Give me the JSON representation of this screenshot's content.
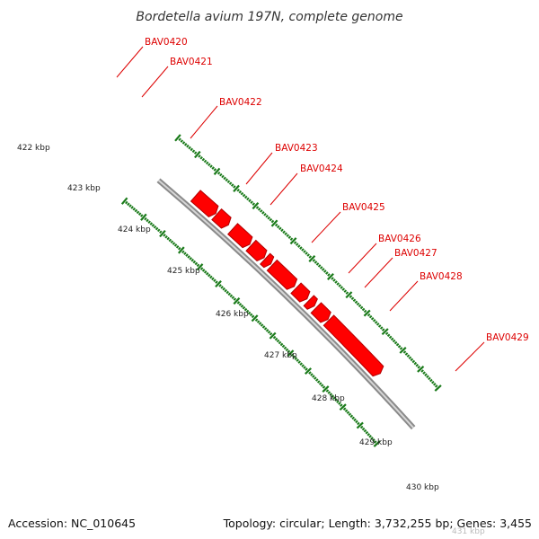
{
  "title": "Bordetella avium 197N, complete genome",
  "footer": {
    "accession": "Accession: NC_010645",
    "summary": "Topology: circular; Length: 3,732,255 bp; Genes: 3,455"
  },
  "colors": {
    "gene_fill": "#ff0000",
    "gene_edge": "#b00000",
    "backbone": "#8a8a8a",
    "tick": "#1a7a1a",
    "label": "#dd0000"
  },
  "genes": [
    {
      "name": "BAV0420",
      "start": 420.0,
      "end": 421.05
    },
    {
      "name": "BAV0421",
      "start": 421.1,
      "end": 421.72
    },
    {
      "name": "BAV0422",
      "start": 421.95,
      "end": 422.85
    },
    {
      "name": "BAV0423",
      "start": 422.92,
      "end": 423.62
    },
    {
      "name": "BAV0424",
      "start": 423.68,
      "end": 423.98
    },
    {
      "name": "BAV0425",
      "start": 424.05,
      "end": 425.25
    },
    {
      "name": "BAV0426",
      "start": 425.35,
      "end": 425.95
    },
    {
      "name": "BAV0427",
      "start": 426.05,
      "end": 426.35
    },
    {
      "name": "BAV0428",
      "start": 426.45,
      "end": 427.1
    },
    {
      "name": "BAV0429",
      "start": 427.15,
      "end": 430.05
    }
  ],
  "gene_labels": [
    {
      "text": "BAV0420"
    },
    {
      "text": "BAV0421"
    },
    {
      "text": "BAV0422"
    },
    {
      "text": "BAV0423"
    },
    {
      "text": "BAV0424"
    },
    {
      "text": "BAV0425"
    },
    {
      "text": "BAV0426"
    },
    {
      "text": "BAV0427"
    },
    {
      "text": "BAV0428"
    },
    {
      "text": "BAV0429"
    }
  ],
  "ticks": [
    {
      "text": "422 kbp",
      "pos": 422
    },
    {
      "text": "423 kbp",
      "pos": 423
    },
    {
      "text": "424 kbp",
      "pos": 424
    },
    {
      "text": "425 kbp",
      "pos": 425
    },
    {
      "text": "426 kbp",
      "pos": 426
    },
    {
      "text": "427 kbp",
      "pos": 427
    },
    {
      "text": "428 kbp",
      "pos": 428
    },
    {
      "text": "429 kbp",
      "pos": 429
    },
    {
      "text": "430 kbp",
      "pos": 430
    },
    {
      "text": "431 kbp",
      "pos": 431
    }
  ]
}
